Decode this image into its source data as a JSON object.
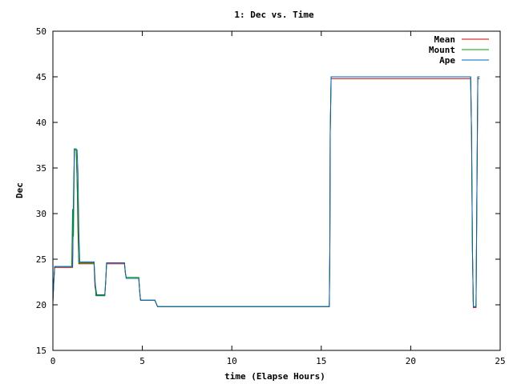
{
  "chart_data": {
    "type": "line",
    "title": "1: Dec vs. Time",
    "xlabel": "time (Elapse Hours)",
    "ylabel": "Dec",
    "xlim": [
      0,
      25
    ],
    "ylim": [
      15,
      50
    ],
    "xticks": [
      0,
      5,
      10,
      15,
      20,
      25
    ],
    "yticks": [
      15,
      20,
      25,
      30,
      35,
      40,
      45,
      50
    ],
    "grid": false,
    "legend_position": "top-right",
    "series": [
      {
        "name": "Mean",
        "color": "#cc0000",
        "points": [
          [
            0,
            20.3
          ],
          [
            0.05,
            22.5
          ],
          [
            0.1,
            24.1
          ],
          [
            1.1,
            24.1
          ],
          [
            1.12,
            27.0
          ],
          [
            1.15,
            30.0
          ],
          [
            1.2,
            37.1
          ],
          [
            1.3,
            37.1
          ],
          [
            1.35,
            34.0
          ],
          [
            1.4,
            28.0
          ],
          [
            1.45,
            24.5
          ],
          [
            2.3,
            24.5
          ],
          [
            2.35,
            22.0
          ],
          [
            2.45,
            21.0
          ],
          [
            2.9,
            21.0
          ],
          [
            2.95,
            22.5
          ],
          [
            3.0,
            24.5
          ],
          [
            4.0,
            24.5
          ],
          [
            4.05,
            23.5
          ],
          [
            4.1,
            22.9
          ],
          [
            4.8,
            22.9
          ],
          [
            4.85,
            21.5
          ],
          [
            4.9,
            20.5
          ],
          [
            5.7,
            20.5
          ],
          [
            5.85,
            19.8
          ],
          [
            15.45,
            19.8
          ],
          [
            15.48,
            26.0
          ],
          [
            15.5,
            38.7
          ],
          [
            15.55,
            44.8
          ],
          [
            23.35,
            44.8
          ],
          [
            23.4,
            38.7
          ],
          [
            23.45,
            26.0
          ],
          [
            23.5,
            19.7
          ],
          [
            23.65,
            19.7
          ],
          [
            23.7,
            32.4
          ],
          [
            23.75,
            44.8
          ],
          [
            23.85,
            44.8
          ]
        ]
      },
      {
        "name": "Mount",
        "color": "#00a000",
        "points": [
          [
            0,
            20.3
          ],
          [
            0.05,
            22.5
          ],
          [
            0.1,
            24.2
          ],
          [
            1.05,
            24.2
          ],
          [
            1.1,
            30.5
          ],
          [
            1.15,
            27.5
          ],
          [
            1.2,
            37.1
          ],
          [
            1.3,
            37.1
          ],
          [
            1.35,
            33.5
          ],
          [
            1.4,
            30.0
          ],
          [
            1.45,
            24.6
          ],
          [
            2.3,
            24.6
          ],
          [
            2.35,
            23.0
          ],
          [
            2.4,
            21.0
          ],
          [
            2.9,
            21.0
          ],
          [
            2.95,
            22.5
          ],
          [
            3.0,
            24.6
          ],
          [
            4.0,
            24.6
          ],
          [
            4.05,
            23.5
          ],
          [
            4.1,
            23.0
          ],
          [
            4.8,
            23.0
          ],
          [
            4.85,
            21.5
          ],
          [
            4.9,
            20.5
          ],
          [
            5.7,
            20.5
          ],
          [
            5.85,
            19.8
          ],
          [
            15.45,
            19.8
          ],
          [
            15.48,
            26.0
          ],
          [
            15.5,
            38.7
          ],
          [
            15.55,
            45.0
          ],
          [
            23.35,
            45.0
          ],
          [
            23.4,
            38.7
          ],
          [
            23.45,
            26.0
          ],
          [
            23.5,
            19.8
          ],
          [
            23.65,
            19.8
          ],
          [
            23.7,
            32.4
          ],
          [
            23.75,
            45.0
          ],
          [
            23.85,
            45.0
          ]
        ]
      },
      {
        "name": "Ape",
        "color": "#0060c0",
        "points": [
          [
            0,
            20.3
          ],
          [
            0.05,
            22.5
          ],
          [
            0.1,
            24.2
          ],
          [
            1.1,
            24.2
          ],
          [
            1.15,
            32.0
          ],
          [
            1.2,
            37.0
          ],
          [
            1.35,
            37.0
          ],
          [
            1.4,
            34.5
          ],
          [
            1.45,
            28.0
          ],
          [
            1.5,
            24.7
          ],
          [
            2.3,
            24.7
          ],
          [
            2.35,
            22.5
          ],
          [
            2.45,
            21.1
          ],
          [
            2.9,
            21.1
          ],
          [
            2.95,
            22.5
          ],
          [
            3.0,
            24.6
          ],
          [
            4.0,
            24.6
          ],
          [
            4.05,
            23.5
          ],
          [
            4.1,
            22.9
          ],
          [
            4.8,
            22.9
          ],
          [
            4.85,
            21.5
          ],
          [
            4.9,
            20.5
          ],
          [
            5.7,
            20.5
          ],
          [
            5.85,
            19.8
          ],
          [
            15.45,
            19.8
          ],
          [
            15.48,
            26.0
          ],
          [
            15.5,
            38.7
          ],
          [
            15.55,
            45.0
          ],
          [
            23.35,
            45.0
          ],
          [
            23.4,
            38.7
          ],
          [
            23.45,
            26.0
          ],
          [
            23.5,
            19.8
          ],
          [
            23.65,
            19.8
          ],
          [
            23.7,
            32.4
          ],
          [
            23.75,
            45.0
          ],
          [
            23.85,
            45.0
          ]
        ]
      }
    ]
  }
}
